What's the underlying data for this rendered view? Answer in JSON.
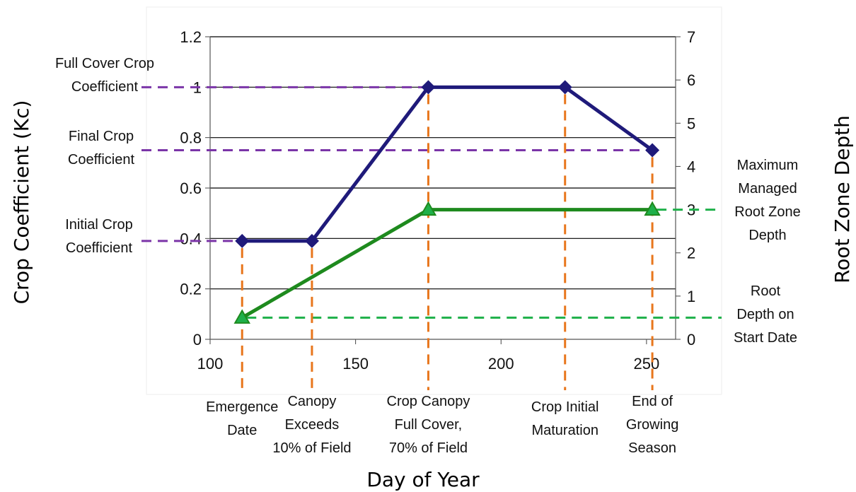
{
  "chart_data": {
    "type": "line",
    "xlabel": "Day of Year",
    "ylabel": "Crop Coefficient (Kc)",
    "y2label": "Root Zone Depth",
    "x_ticks": [
      "100",
      "150",
      "200",
      "250"
    ],
    "y_ticks": [
      "0",
      "0.2",
      "0.4",
      "0.6",
      "0.8",
      "1",
      "1.2"
    ],
    "y2_ticks": [
      "0",
      "1",
      "2",
      "3",
      "4",
      "5",
      "6",
      "7"
    ],
    "xlim": [
      100,
      260
    ],
    "ylim": [
      0,
      1.2
    ],
    "y2lim": [
      0,
      7
    ],
    "grid": true,
    "series": [
      {
        "axis": "left",
        "color": "#1f1a7a",
        "marker": "diamond",
        "x": [
          111,
          135,
          175,
          222,
          252
        ],
        "values": [
          0.39,
          0.39,
          1.0,
          1.0,
          0.75
        ]
      },
      {
        "axis": "right",
        "color": "#1e8a1e",
        "marker": "triangle",
        "x": [
          111,
          175,
          252
        ],
        "values": [
          0.5,
          3.0,
          3.0
        ]
      }
    ],
    "reference_lines": [
      {
        "orientation": "horizontal",
        "axis": "left",
        "value": 1.0,
        "x_to": 175,
        "color": "#7b35a8",
        "label": "Full Cover Crop Coefficient"
      },
      {
        "orientation": "horizontal",
        "axis": "left",
        "value": 0.75,
        "x_to": 252,
        "color": "#7b35a8",
        "label": "Final Crop Coefficient"
      },
      {
        "orientation": "horizontal",
        "axis": "left",
        "value": 0.39,
        "x_to": 111,
        "color": "#7b35a8",
        "label": "Initial Crop Coefficient"
      },
      {
        "orientation": "horizontal",
        "axis": "right",
        "value": 3.0,
        "x_from": 252,
        "color": "#1fb04a",
        "label": "Maximum Managed Root Zone Depth"
      },
      {
        "orientation": "horizontal",
        "axis": "right",
        "value": 0.5,
        "x_from": 111,
        "color": "#1fb04a",
        "label": "Root Depth on Start Date"
      }
    ],
    "stage_lines": [
      {
        "x": 111,
        "color": "#e8761c",
        "label": "Emergence Date"
      },
      {
        "x": 135,
        "color": "#e8761c",
        "label": "Canopy Exceeds 10% of Field"
      },
      {
        "x": 175,
        "color": "#e8761c",
        "label": "Crop Canopy Full Cover, 70% of Field"
      },
      {
        "x": 222,
        "color": "#e8761c",
        "label": "Crop Initial Maturation"
      },
      {
        "x": 252,
        "color": "#e8761c",
        "label": "End of Growing Season"
      }
    ]
  }
}
